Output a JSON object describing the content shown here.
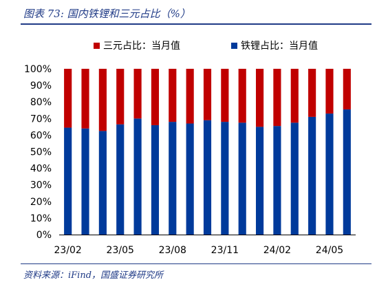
{
  "title": "图表 73:  国内铁锂和三元占比（%）",
  "source": "资料来源：iFind，国盛证券研究所",
  "colors": {
    "ternary": "#C00000",
    "lfp": "#003A9B",
    "accent": "#1F3A86"
  },
  "chart_data": {
    "type": "bar",
    "stacked": true,
    "percent_stacked": true,
    "categories": [
      "23/02",
      "23/03",
      "23/04",
      "23/05",
      "23/06",
      "23/07",
      "23/08",
      "23/09",
      "23/10",
      "23/11",
      "23/12",
      "24/01",
      "24/02",
      "24/03",
      "24/04",
      "24/05",
      "24/06"
    ],
    "x_tick_labels": [
      "23/02",
      "23/05",
      "23/08",
      "23/11",
      "24/02",
      "24/05"
    ],
    "series": [
      {
        "name": "铁锂占比：当月值",
        "color": "#003A9B",
        "values": [
          64.5,
          64,
          62.5,
          66.5,
          70,
          66,
          68,
          67,
          69,
          68,
          67.5,
          65,
          65.5,
          67.5,
          71,
          73,
          75.5
        ]
      },
      {
        "name": "三元占比：当月值",
        "color": "#C00000",
        "values": [
          35.5,
          36,
          37.5,
          33.5,
          30,
          34,
          32,
          33,
          31,
          32,
          32.5,
          35,
          34.5,
          32.5,
          29,
          27,
          24.5
        ]
      }
    ],
    "legend": [
      {
        "name": "三元占比：当月值",
        "color": "#C00000"
      },
      {
        "name": "铁锂占比：当月值",
        "color": "#003A9B"
      }
    ],
    "y_ticks": [
      "0%",
      "10%",
      "20%",
      "30%",
      "40%",
      "50%",
      "60%",
      "70%",
      "80%",
      "90%",
      "100%"
    ],
    "ylim": [
      0,
      100
    ],
    "grid": false,
    "legend_position": "top"
  }
}
